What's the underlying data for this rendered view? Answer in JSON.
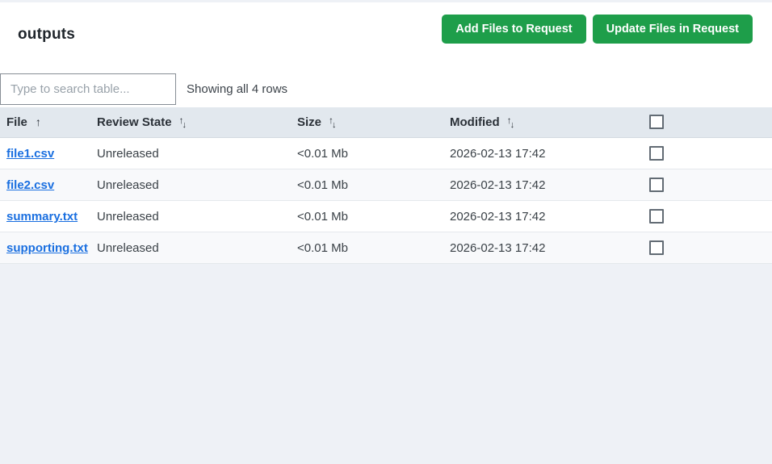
{
  "page": {
    "title": "outputs"
  },
  "toolbar": {
    "add_files_label": "Add Files to Request",
    "update_files_label": "Update Files in Request"
  },
  "search": {
    "placeholder": "Type to search table...",
    "value": "",
    "status_text": "Showing all 4 rows"
  },
  "icons": {
    "sort_ascending": "↑",
    "sort_up": "↑",
    "sort_down": "↓"
  },
  "table": {
    "columns": [
      {
        "label": "File",
        "sort": "ascending"
      },
      {
        "label": "Review State",
        "sort": "none"
      },
      {
        "label": "Size",
        "sort": "none"
      },
      {
        "label": "Modified",
        "sort": "none"
      },
      {
        "label": "",
        "sort": "select-all-checkbox"
      }
    ],
    "rows": [
      {
        "file": "file1.csv",
        "review_state": "Unreleased",
        "size": "<0.01 Mb",
        "modified": "2026-02-13 17:42",
        "checked": false
      },
      {
        "file": "file2.csv",
        "review_state": "Unreleased",
        "size": "<0.01 Mb",
        "modified": "2026-02-13 17:42",
        "checked": false
      },
      {
        "file": "summary.txt",
        "review_state": "Unreleased",
        "size": "<0.01 Mb",
        "modified": "2026-02-13 17:42",
        "checked": false
      },
      {
        "file": "supporting.txt",
        "review_state": "Unreleased",
        "size": "<0.01 Mb",
        "modified": "2026-02-13 17:42",
        "checked": false
      }
    ]
  },
  "colors": {
    "button_green": "#1e9e4a",
    "link_blue": "#1a6fe0",
    "header_background": "#e2e8ee",
    "page_background": "#eef1f6",
    "stripe_row": "#f8f9fb"
  }
}
